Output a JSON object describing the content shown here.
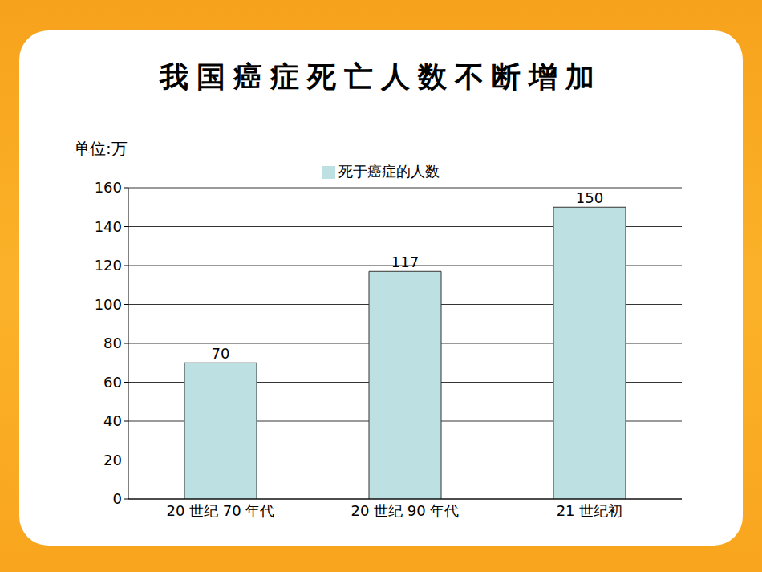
{
  "chart_data": {
    "type": "bar",
    "title": "我国癌症死亡人数不断增加",
    "y_label": "单位:万",
    "categories": [
      "20 世纪 70 年代",
      "20 世纪 90 年代",
      "21 世纪初"
    ],
    "series": [
      {
        "name": "死于癌症的人数",
        "color": "#bde0e3",
        "values": [
          70,
          117,
          150
        ]
      }
    ],
    "ylim": [
      0,
      160
    ],
    "yticks": [
      0,
      20,
      40,
      60,
      80,
      100,
      120,
      140,
      160
    ],
    "grid": true,
    "legend": "top",
    "data_labels": true
  }
}
